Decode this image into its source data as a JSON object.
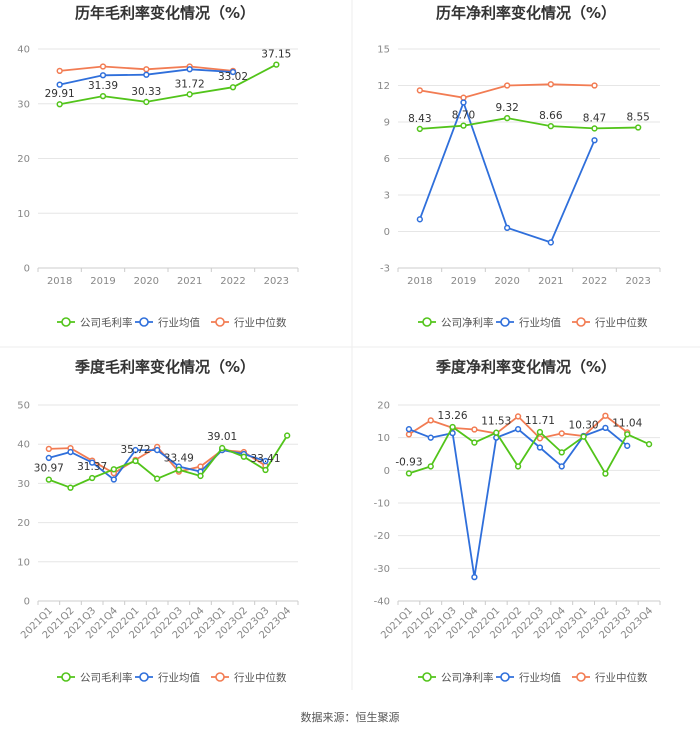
{
  "colors": {
    "company": "#52c41a",
    "average": "#2f6fdb",
    "median": "#f27c53"
  },
  "legend": {
    "gross": [
      "公司毛利率",
      "行业均值",
      "行业中位数"
    ],
    "net": [
      "公司净利率",
      "行业均值",
      "行业中位数"
    ]
  },
  "source": "数据来源：恒生聚源",
  "chart_data": [
    {
      "type": "line",
      "title": "历年毛利率变化情况（%）",
      "categories": [
        "2018",
        "2019",
        "2020",
        "2021",
        "2022",
        "2023"
      ],
      "ylim": [
        0,
        40
      ],
      "yticks": [
        0,
        10,
        20,
        30,
        40
      ],
      "series": [
        {
          "name": "公司毛利率",
          "values": [
            29.91,
            31.39,
            30.33,
            31.72,
            33.02,
            37.15
          ]
        },
        {
          "name": "行业均值",
          "values": [
            33.5,
            35.2,
            35.3,
            36.3,
            35.8,
            null
          ]
        },
        {
          "name": "行业中位数",
          "values": [
            36.0,
            36.8,
            36.3,
            36.8,
            36.0,
            null
          ]
        }
      ],
      "labels": [
        "29.91",
        "31.39",
        "30.33",
        "31.72",
        "33.02",
        "37.15"
      ]
    },
    {
      "type": "line",
      "title": "历年净利率变化情况（%）",
      "categories": [
        "2018",
        "2019",
        "2020",
        "2021",
        "2022",
        "2023"
      ],
      "ylim": [
        -3,
        15
      ],
      "yticks": [
        -3,
        0,
        3,
        6,
        9,
        12,
        15
      ],
      "series": [
        {
          "name": "公司净利率",
          "values": [
            8.43,
            8.7,
            9.32,
            8.66,
            8.47,
            8.55
          ]
        },
        {
          "name": "行业均值",
          "values": [
            1.0,
            10.6,
            0.3,
            -0.9,
            7.5,
            null
          ]
        },
        {
          "name": "行业中位数",
          "values": [
            11.6,
            11.0,
            12.0,
            12.1,
            12.0,
            null
          ]
        }
      ],
      "labels": [
        "8.43",
        "8.70",
        "9.32",
        "8.66",
        "8.47",
        "8.55"
      ]
    },
    {
      "type": "line",
      "title": "季度毛利率变化情况（%）",
      "categories": [
        "2021Q1",
        "2021Q2",
        "2021Q3",
        "2021Q4",
        "2022Q1",
        "2022Q2",
        "2022Q3",
        "2022Q4",
        "2023Q1",
        "2023Q2",
        "2023Q3",
        "2023Q4"
      ],
      "ylim": [
        0,
        50
      ],
      "yticks": [
        0,
        10,
        20,
        30,
        40,
        50
      ],
      "series": [
        {
          "name": "公司毛利率",
          "values": [
            30.97,
            28.9,
            31.37,
            33.6,
            35.72,
            31.2,
            33.49,
            31.9,
            39.01,
            36.8,
            33.41,
            42.2
          ]
        },
        {
          "name": "行业均值",
          "values": [
            36.5,
            38.0,
            35.3,
            31.0,
            38.5,
            38.5,
            34.3,
            33.0,
            38.5,
            37.5,
            35.7,
            null
          ]
        },
        {
          "name": "行业中位数",
          "values": [
            38.8,
            39.0,
            35.8,
            32.6,
            36.0,
            39.3,
            33.0,
            34.3,
            38.5,
            38.0,
            34.5,
            null
          ]
        }
      ],
      "labels": [
        "30.97",
        "",
        "31.37",
        "",
        "35.72",
        "",
        "33.49",
        "",
        "39.01",
        "",
        "33.41",
        ""
      ]
    },
    {
      "type": "line",
      "title": "季度净利率变化情况（%）",
      "categories": [
        "2021Q1",
        "2021Q2",
        "2021Q3",
        "2021Q4",
        "2022Q1",
        "2022Q2",
        "2022Q3",
        "2022Q4",
        "2023Q1",
        "2023Q2",
        "2023Q3",
        "2023Q4"
      ],
      "ylim": [
        -40,
        20
      ],
      "yticks": [
        -40,
        -30,
        -20,
        -10,
        0,
        10,
        20
      ],
      "series": [
        {
          "name": "公司净利率",
          "values": [
            -0.93,
            1.2,
            13.26,
            8.5,
            11.53,
            1.2,
            11.71,
            5.5,
            10.3,
            -1.0,
            11.04,
            8.0
          ]
        },
        {
          "name": "行业均值",
          "values": [
            12.6,
            10.0,
            11.4,
            -32.7,
            10.0,
            12.6,
            7.0,
            1.2,
            10.5,
            13.0,
            7.5,
            null
          ]
        },
        {
          "name": "行业中位数",
          "values": [
            11.0,
            15.3,
            13.0,
            12.5,
            11.3,
            16.5,
            9.8,
            11.3,
            10.5,
            16.7,
            11.6,
            null
          ]
        }
      ],
      "labels": [
        "-0.93",
        "",
        "13.26",
        "",
        "11.53",
        "",
        "11.71",
        "",
        "10.30",
        "",
        "11.04",
        ""
      ]
    }
  ]
}
